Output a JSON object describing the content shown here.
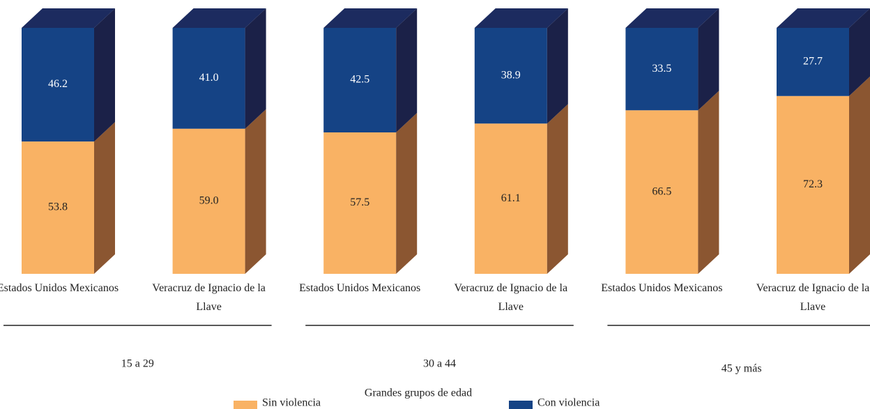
{
  "chart_data": {
    "type": "bar",
    "stacked": true,
    "xlabel": "Grandes grupos de edad",
    "groups": [
      "15 a 29",
      "30 a 44",
      "45 y más"
    ],
    "categories": [
      "Estados Unidos Mexicanos",
      "Veracruz de Ignacio de la Llave",
      "Estados Unidos Mexicanos",
      "Veracruz de Ignacio de la Llave",
      "Estados Unidos Mexicanos",
      "Veracruz de Ignacio de la Llave"
    ],
    "ylim": [
      0,
      100
    ],
    "series": [
      {
        "name": "Sin violencia",
        "color": "#f9b264",
        "side_color": "#8b5631",
        "values": [
          53.8,
          59.0,
          57.5,
          61.1,
          66.5,
          72.3
        ],
        "value_labels": [
          "53.8",
          "59.0",
          "57.5",
          "61.1",
          "66.5",
          "72.3"
        ]
      },
      {
        "name": "Con violencia",
        "color": "#154385",
        "side_color": "#1b2148",
        "top_color": "#1c2b5f",
        "values": [
          46.2,
          41.0,
          42.5,
          38.9,
          33.5,
          27.7
        ],
        "value_labels": [
          "46.2",
          "41.0",
          "42.5",
          "38.9",
          "33.5",
          "27.7"
        ]
      }
    ]
  }
}
